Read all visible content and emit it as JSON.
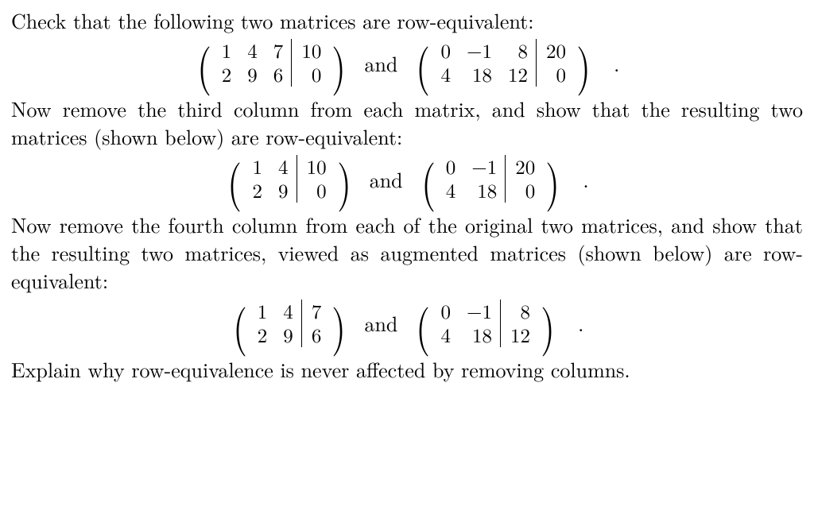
{
  "text": {
    "p1": "Check that the following two matrices are row-equivalent:",
    "p2": "Now remove the third column from each matrix, and show that the resulting two matrices (shown below) are row-equivalent:",
    "p3": "Now remove the fourth column from each of the original two matrices, and show that the resulting two matrices, viewed as augmented matrices (shown below) are row-equivalent:",
    "p4": "Explain why row-equivalence is never affected by removing columns.",
    "and": "and",
    "period": "."
  },
  "matrices": {
    "m1a": {
      "rows": [
        [
          "1",
          "4",
          "7",
          "10"
        ],
        [
          "2",
          "9",
          "6",
          "0"
        ]
      ],
      "bar_after_col": 3
    },
    "m1b": {
      "rows": [
        [
          "0",
          "−1",
          "8",
          "20"
        ],
        [
          "4",
          "18",
          "12",
          "0"
        ]
      ],
      "bar_after_col": 3
    },
    "m2a": {
      "rows": [
        [
          "1",
          "4",
          "10"
        ],
        [
          "2",
          "9",
          "0"
        ]
      ],
      "bar_after_col": 2
    },
    "m2b": {
      "rows": [
        [
          "0",
          "−1",
          "20"
        ],
        [
          "4",
          "18",
          "0"
        ]
      ],
      "bar_after_col": 2
    },
    "m3a": {
      "rows": [
        [
          "1",
          "4",
          "7"
        ],
        [
          "2",
          "9",
          "6"
        ]
      ],
      "bar_after_col": 2
    },
    "m3b": {
      "rows": [
        [
          "0",
          "−1",
          "8"
        ],
        [
          "4",
          "18",
          "12"
        ]
      ],
      "bar_after_col": 2
    }
  },
  "style": {
    "text_color": "#000000",
    "background": "#ffffff",
    "font_size_body": 26,
    "font_size_matrix": 25,
    "paren_size": 62
  }
}
